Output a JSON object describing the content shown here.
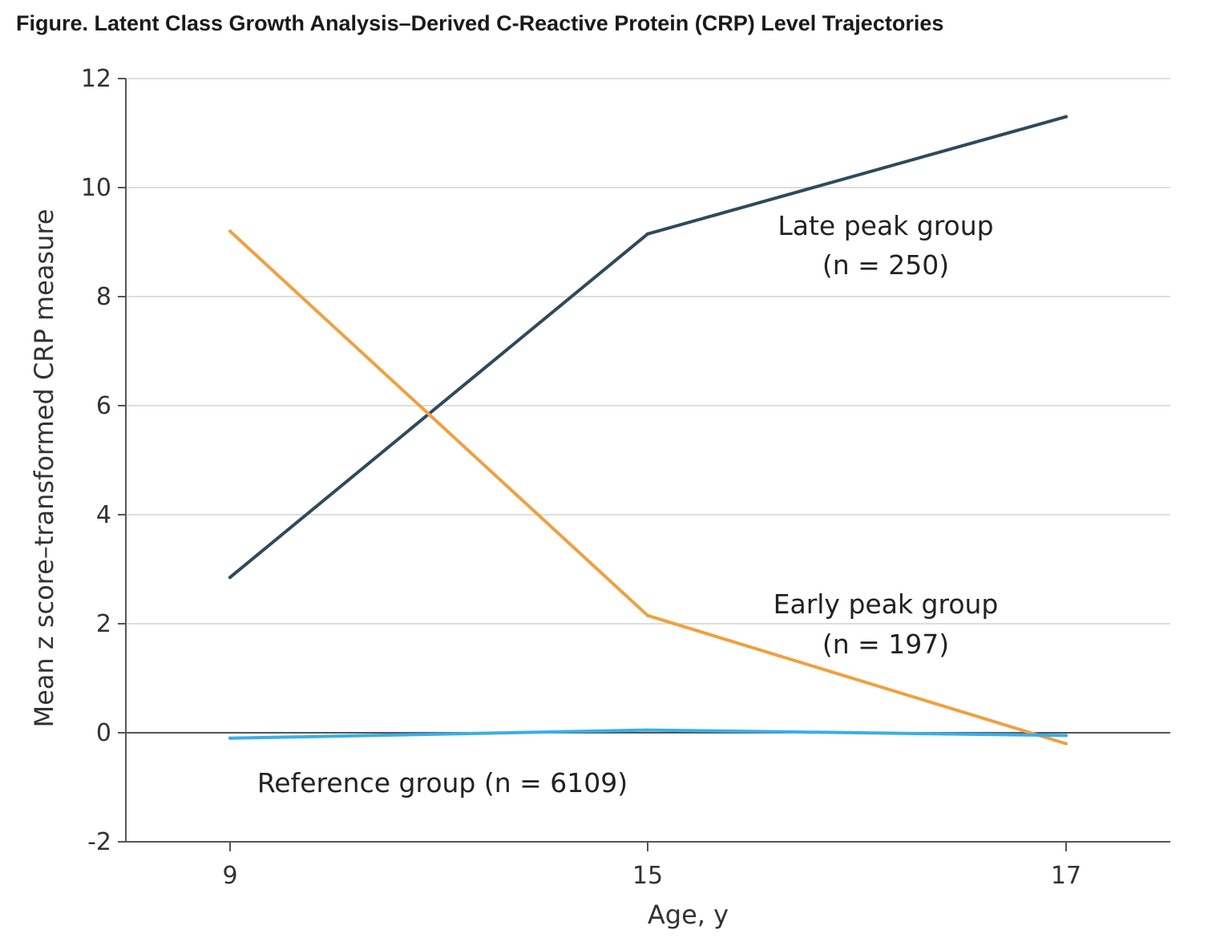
{
  "figure": {
    "title": "Figure.  Latent Class Growth Analysis–Derived C-Reactive Protein (CRP) Level Trajectories"
  },
  "chart_data": {
    "type": "line",
    "title": "",
    "xlabel": "Age, y",
    "ylabel": "Mean z score–transformed CRP measure",
    "x": [
      9,
      15,
      17
    ],
    "x_ticks": [
      "9",
      "15",
      "17"
    ],
    "y_ticks": [
      "12",
      "10",
      "8",
      "6",
      "4",
      "2",
      "0",
      "-2"
    ],
    "ylim": [
      -2,
      12
    ],
    "grid": "horizontal",
    "series": [
      {
        "annotation_lines": [
          "Late peak group",
          "(n = 250)"
        ],
        "values": [
          2.85,
          9.15,
          11.3
        ],
        "color": "#2e4a5b"
      },
      {
        "annotation_lines": [
          "Early peak group",
          "(n = 197)"
        ],
        "values": [
          9.2,
          2.15,
          -0.2
        ],
        "color": "#f0a040"
      },
      {
        "annotation_lines": [
          "Reference group (n = 6109)"
        ],
        "values": [
          -0.1,
          0.05,
          -0.05
        ],
        "color": "#3aaee8"
      }
    ]
  }
}
